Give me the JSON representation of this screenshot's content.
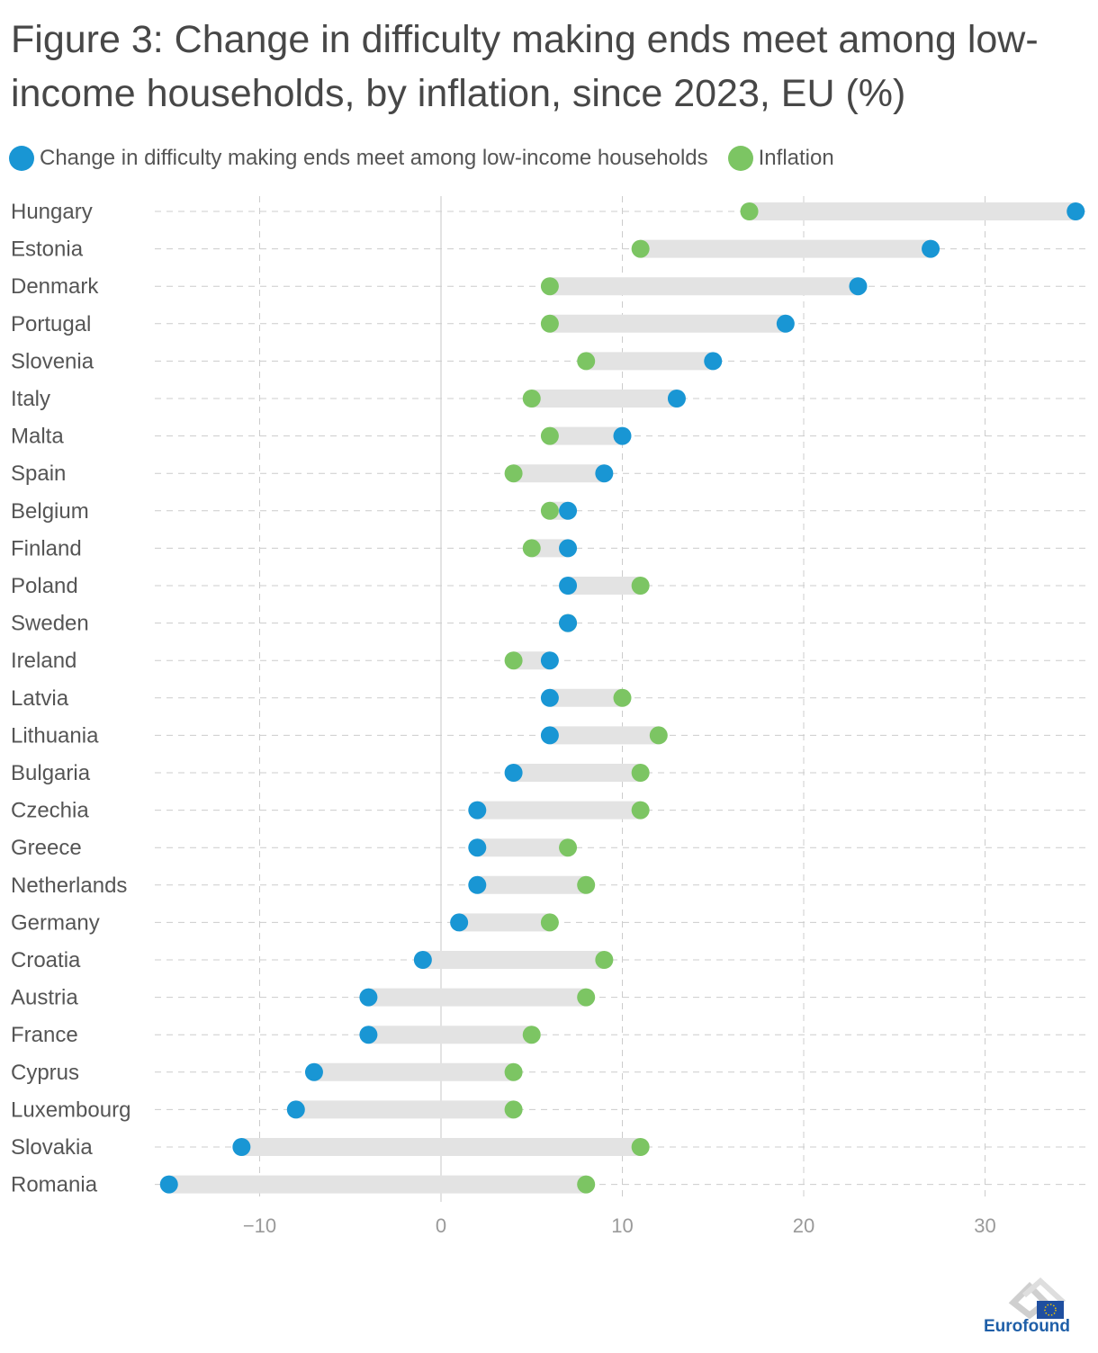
{
  "chart_data": {
    "type": "dumbbell",
    "title": "Figure 3: Change in difficulty making ends meet among low-income households, by inflation, since 2023, EU (%)",
    "xlim": [
      -16,
      35
    ],
    "xticks": [
      -10,
      0,
      10,
      20,
      30
    ],
    "xtick_labels": [
      "−10",
      "0",
      "10",
      "20",
      "30"
    ],
    "grid": true,
    "legend_position": "top-left",
    "series": [
      {
        "name": "Change in difficulty making ends meet among low-income households",
        "key": "change",
        "color": "#1996d4"
      },
      {
        "name": "Inflation",
        "key": "inflation",
        "color": "#7cc563"
      }
    ],
    "categories": [
      "Hungary",
      "Estonia",
      "Denmark",
      "Portugal",
      "Slovenia",
      "Italy",
      "Malta",
      "Spain",
      "Belgium",
      "Finland",
      "Poland",
      "Sweden",
      "Ireland",
      "Latvia",
      "Lithuania",
      "Bulgaria",
      "Czechia",
      "Greece",
      "Netherlands",
      "Germany",
      "Croatia",
      "Austria",
      "France",
      "Cyprus",
      "Luxembourg",
      "Slovakia",
      "Romania"
    ],
    "change": [
      35,
      27,
      23,
      19,
      15,
      13,
      10,
      9,
      7,
      7,
      7,
      7,
      6,
      6,
      6,
      4,
      2,
      2,
      2,
      1,
      -1,
      -4,
      -4,
      -7,
      -8,
      -11,
      -15
    ],
    "inflation": [
      17,
      11,
      6,
      6,
      8,
      5,
      6,
      4,
      6,
      5,
      11,
      7,
      4,
      10,
      12,
      11,
      11,
      7,
      8,
      6,
      9,
      8,
      5,
      4,
      4,
      11,
      8
    ]
  },
  "logo": {
    "text": "Eurofound"
  }
}
